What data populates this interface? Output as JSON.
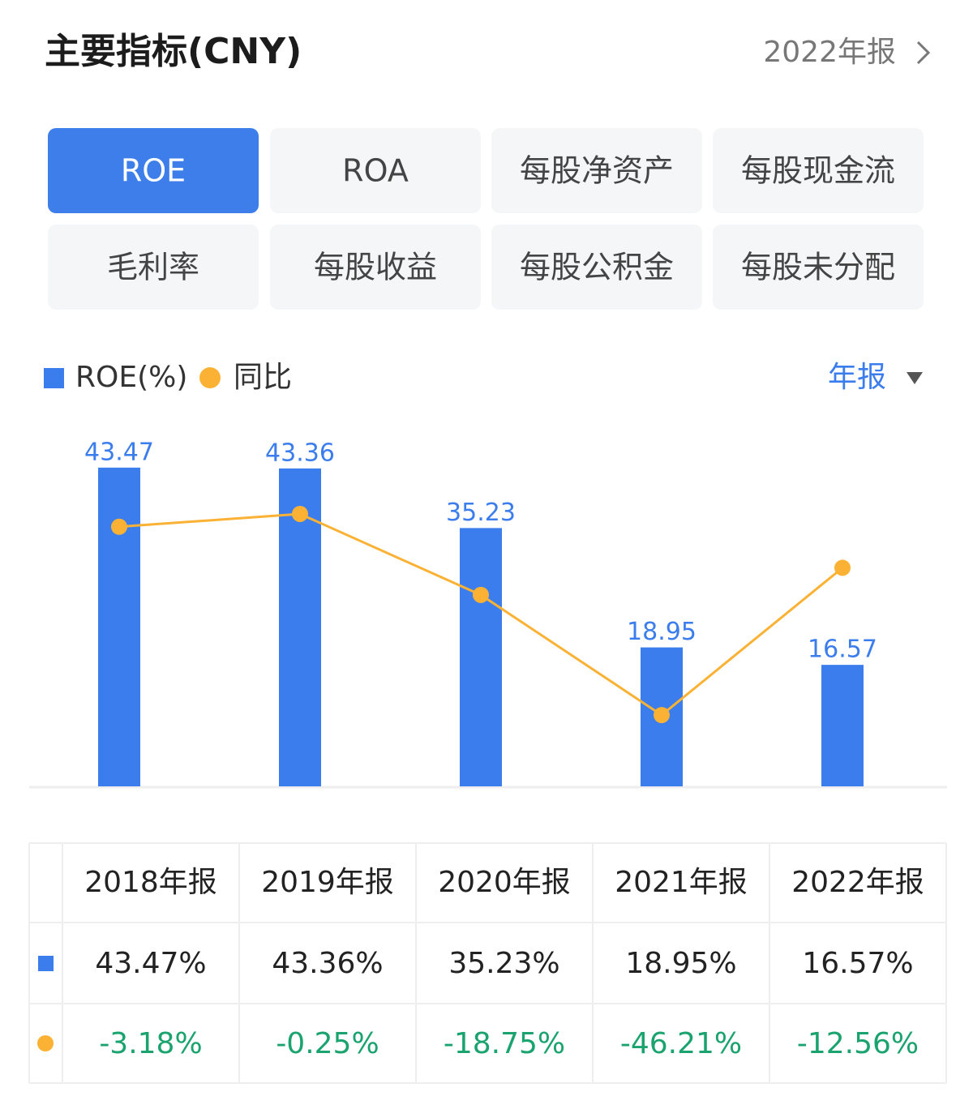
{
  "header": {
    "title": "主要指标(CNY)",
    "period": "2022年报"
  },
  "tabs": {
    "items": [
      "ROE",
      "ROA",
      "每股净资产",
      "每股现金流",
      "毛利率",
      "每股收益",
      "每股公积金",
      "每股未分配"
    ],
    "selected": 0
  },
  "period_toggle": "年报",
  "chart_data": {
    "type": "combo",
    "categories": [
      "2018年报",
      "2019年报",
      "2020年报",
      "2021年报",
      "2022年报"
    ],
    "series": [
      {
        "name": "ROE(%)",
        "type": "bar",
        "color": "#3b7ded",
        "values": [
          43.47,
          43.36,
          35.23,
          18.95,
          16.57
        ],
        "value_labels": [
          "43.47%",
          "43.36%",
          "35.23%",
          "18.95%",
          "16.57%"
        ]
      },
      {
        "name": "同比",
        "type": "line",
        "axis": "y2",
        "color": "#fbb234",
        "values": [
          -3.18,
          -0.25,
          -18.75,
          -46.21,
          -12.56
        ],
        "value_labels": [
          "-3.18%",
          "-0.25%",
          "-18.75%",
          "-46.21%",
          "-12.56%"
        ]
      }
    ],
    "ylim": [
      0,
      45
    ],
    "y2lim": [
      -62.5,
      12.9
    ]
  }
}
